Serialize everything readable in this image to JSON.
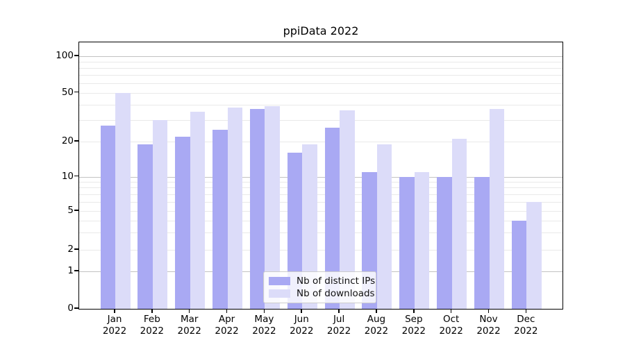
{
  "chart_data": {
    "type": "bar",
    "title": "ppiData 2022",
    "categories": [
      "Jan 2022",
      "Feb 2022",
      "Mar 2022",
      "Apr 2022",
      "May 2022",
      "Jun 2022",
      "Jul 2022",
      "Aug 2022",
      "Sep 2022",
      "Oct 2022",
      "Nov 2022",
      "Dec 2022"
    ],
    "month_labels": [
      "Jan",
      "Feb",
      "Mar",
      "Apr",
      "May",
      "Jun",
      "Jul",
      "Aug",
      "Sep",
      "Oct",
      "Nov",
      "Dec"
    ],
    "year_label": "2022",
    "series": [
      {
        "name": "Nb of distinct IPs",
        "color": "#a9a9f3",
        "values": [
          27,
          19,
          22,
          25,
          37,
          16,
          26,
          11,
          10,
          10,
          10,
          4
        ]
      },
      {
        "name": "Nb of downloads",
        "color": "#dcdcf9",
        "values": [
          50,
          30,
          35,
          38,
          39,
          19,
          36,
          19,
          11,
          21,
          37,
          6
        ]
      }
    ],
    "ylabel": "",
    "xlabel": "",
    "yscale": "log-like with 0 baseline",
    "yticks": [
      0,
      1,
      2,
      5,
      10,
      20,
      50,
      100
    ],
    "decade_ticks": [
      1,
      10,
      100
    ],
    "minor_gridlines": [
      3,
      4,
      6,
      7,
      8,
      9,
      30,
      40,
      60,
      70,
      80,
      90
    ],
    "ylim_top_value": 130,
    "grid": true,
    "legend_position": "lower center",
    "colors": {
      "axis": "#000000",
      "grid_decade": "#c2c2c2",
      "grid_sub": "#e9e9e9",
      "background": "#ffffff"
    }
  }
}
